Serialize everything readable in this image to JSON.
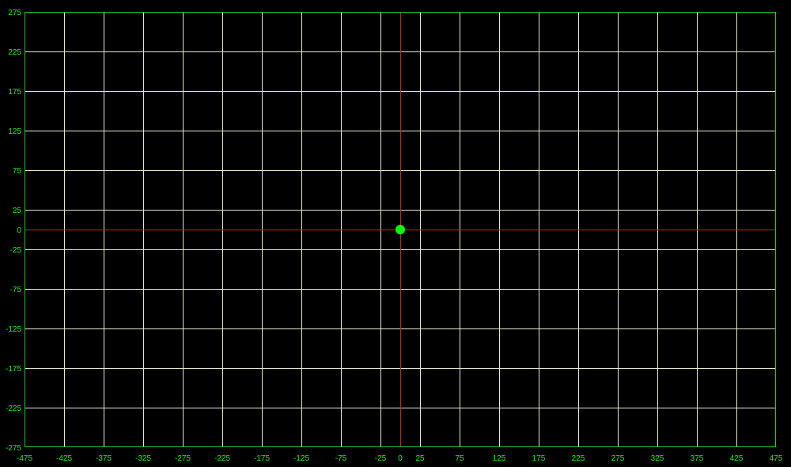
{
  "chart_data": {
    "type": "scatter",
    "title": "",
    "xlabel": "",
    "ylabel": "",
    "xlim": [
      -475,
      475
    ],
    "ylim": [
      -275,
      275
    ],
    "grid": true,
    "x_ticks": [
      -475,
      -425,
      -375,
      -325,
      -275,
      -225,
      -175,
      -125,
      -75,
      -25,
      0,
      25,
      75,
      125,
      175,
      225,
      275,
      325,
      375,
      425,
      475
    ],
    "y_ticks": [
      275,
      225,
      175,
      125,
      75,
      25,
      0,
      -25,
      -75,
      -125,
      -175,
      -225,
      -275
    ],
    "x_tick_labels": [
      "-475",
      "-425",
      "-375",
      "-325",
      "-275",
      "-225",
      "-175",
      "-125",
      "-75",
      "-25",
      "0",
      "25",
      "75",
      "125",
      "175",
      "225",
      "275",
      "325",
      "375",
      "425",
      "475"
    ],
    "y_tick_labels": [
      "275",
      "225",
      "175",
      "125",
      "75",
      "25",
      "0",
      "-25",
      "-75",
      "-125",
      "-175",
      "-225",
      "-275"
    ],
    "points": [
      {
        "x": 0,
        "y": 0
      }
    ]
  },
  "colors": {
    "background": "#000000",
    "grid": "#e6e6c8",
    "frame": "#22cc22",
    "axis": "#cc2222",
    "tick_label": "#22ee22",
    "point": "#00ff00"
  }
}
